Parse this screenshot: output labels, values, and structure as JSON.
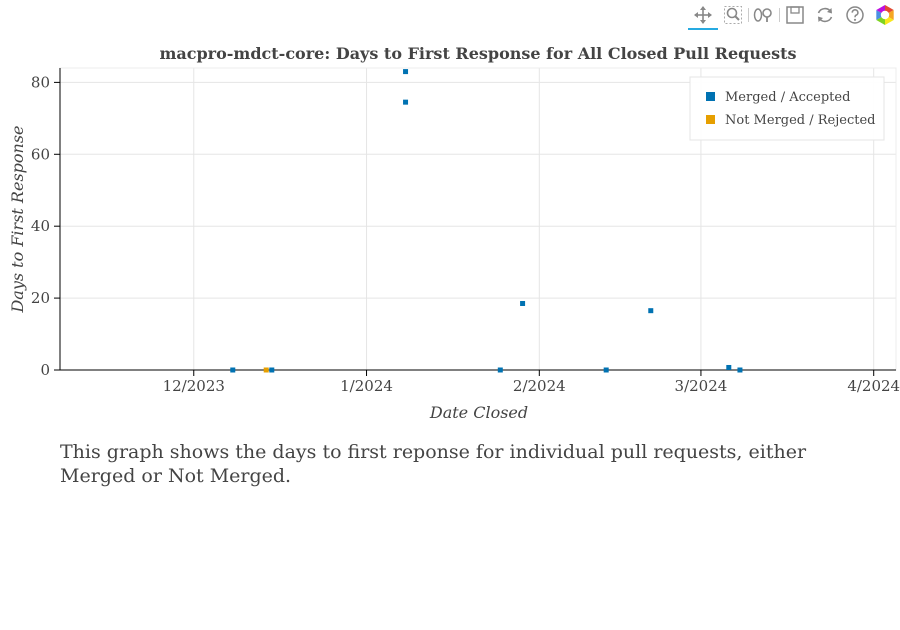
{
  "toolbar": {
    "tools": [
      {
        "name": "pan-tool-icon",
        "active": true
      },
      {
        "name": "box-zoom-tool-icon",
        "active": false
      },
      {
        "name": "wheel-zoom-tool-icon",
        "active": false
      },
      {
        "name": "save-tool-icon",
        "active": false
      },
      {
        "name": "reset-tool-icon",
        "active": false
      },
      {
        "name": "help-tool-icon",
        "active": false
      },
      {
        "name": "bokeh-logo-icon",
        "active": false
      }
    ]
  },
  "chart_data": {
    "type": "scatter",
    "title": "macpro-mdct-core: Days to First Response for All Closed Pull Requests",
    "xlabel": "Date Closed",
    "ylabel": "Days to First Response",
    "xlim": [
      "2023-11-07",
      "2024-04-05"
    ],
    "ylim": [
      0,
      84
    ],
    "x_ticks": [
      {
        "date": "2023-12-01",
        "label": "12/2023"
      },
      {
        "date": "2024-01-01",
        "label": "1/2024"
      },
      {
        "date": "2024-02-01",
        "label": "2/2024"
      },
      {
        "date": "2024-03-01",
        "label": "3/2024"
      },
      {
        "date": "2024-04-01",
        "label": "4/2024"
      }
    ],
    "y_ticks": [
      0,
      20,
      40,
      60,
      80
    ],
    "grid": true,
    "legend_position": "top-right",
    "series": [
      {
        "name": "Merged / Accepted",
        "color": "#0072b2",
        "points": [
          {
            "x": "2023-12-08",
            "y": 0
          },
          {
            "x": "2023-12-15",
            "y": 0
          },
          {
            "x": "2024-01-08",
            "y": 83
          },
          {
            "x": "2024-01-08",
            "y": 74.5
          },
          {
            "x": "2024-01-25",
            "y": 0
          },
          {
            "x": "2024-01-29",
            "y": 18.5
          },
          {
            "x": "2024-02-13",
            "y": 0
          },
          {
            "x": "2024-02-21",
            "y": 16.5
          },
          {
            "x": "2024-03-06",
            "y": 0.7
          },
          {
            "x": "2024-03-08",
            "y": 0
          }
        ]
      },
      {
        "name": "Not Merged / Rejected",
        "color": "#e69f00",
        "points": [
          {
            "x": "2023-12-14",
            "y": 0
          }
        ]
      }
    ]
  },
  "description": "This graph shows the days to first reponse for individual pull requests, either Merged or Not Merged."
}
